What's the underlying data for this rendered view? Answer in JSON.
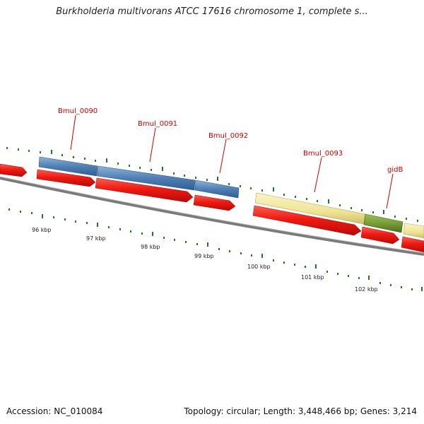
{
  "title": "Burkholderia multivorans ATCC 17616 chromosome 1, complete s...",
  "accession": "Accession: NC_010084",
  "summary": "Topology: circular; Length: 3,448,466 bp; Genes: 3,214",
  "colors": {
    "cds_red": "#e8120f",
    "gene_blue": "#4f7fb4",
    "gene_yellow": "#f0e69a",
    "gene_green": "#6f9630",
    "backbone": "#7a7a7a",
    "tick_green": "#1f7a1f",
    "label_red": "#cc0000"
  },
  "scale_labels": [
    "96 kbp",
    "97 kbp",
    "98 kbp",
    "99 kbp",
    "100 kbp",
    "101 kbp",
    "102 kbp"
  ],
  "gene_labels": [
    "Bmul_0090",
    "Bmul_0091",
    "Bmul_0092",
    "Bmul_0093",
    "gidB"
  ]
}
